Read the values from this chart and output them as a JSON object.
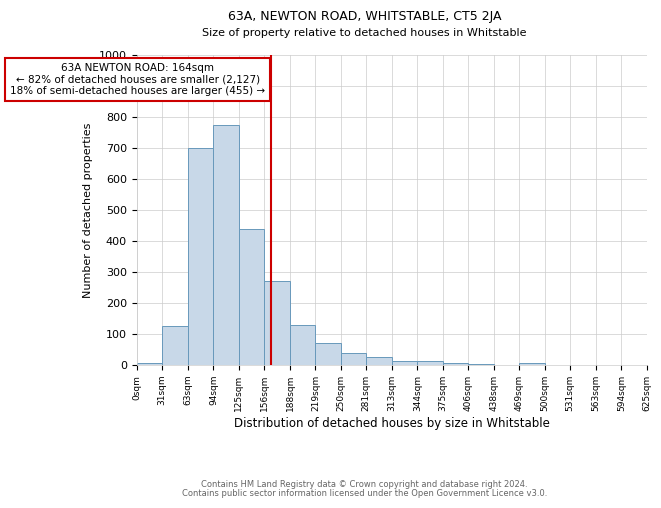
{
  "title": "63A, NEWTON ROAD, WHITSTABLE, CT5 2JA",
  "subtitle": "Size of property relative to detached houses in Whitstable",
  "xlabel": "Distribution of detached houses by size in Whitstable",
  "ylabel": "Number of detached properties",
  "footnote1": "Contains HM Land Registry data © Crown copyright and database right 2024.",
  "footnote2": "Contains public sector information licensed under the Open Government Licence v3.0.",
  "annotation_line1": "63A NEWTON ROAD: 164sqm",
  "annotation_line2": "← 82% of detached houses are smaller (2,127)",
  "annotation_line3": "18% of semi-detached houses are larger (455) →",
  "property_size": 164,
  "bin_edges": [
    0,
    31,
    63,
    94,
    125,
    156,
    188,
    219,
    250,
    281,
    313,
    344,
    375,
    406,
    438,
    469,
    500,
    531,
    563,
    594,
    625
  ],
  "bar_values": [
    5,
    125,
    700,
    775,
    440,
    270,
    130,
    70,
    40,
    25,
    12,
    12,
    7,
    3,
    0,
    8,
    0,
    0,
    0,
    0
  ],
  "bar_color": "#c8d8e8",
  "bar_edge_color": "#6899bb",
  "vline_color": "#cc0000",
  "vline_x": 164,
  "annotation_box_color": "#cc0000",
  "ylim": [
    0,
    1000
  ],
  "background_color": "#ffffff",
  "grid_color": "#cccccc"
}
